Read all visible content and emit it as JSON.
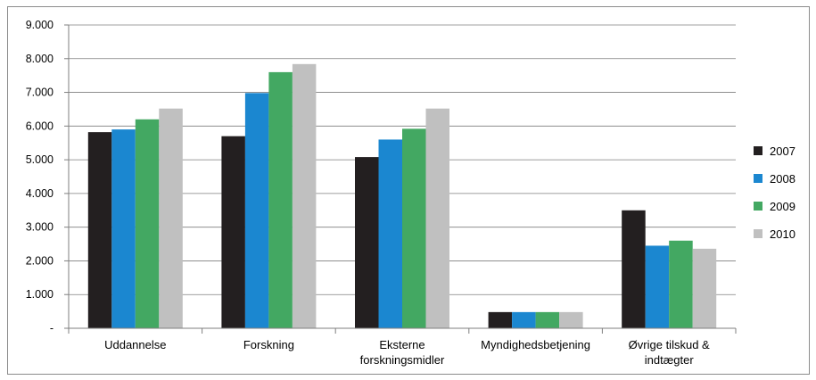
{
  "chart_data": {
    "type": "bar",
    "categories": [
      [
        "Uddannelse"
      ],
      [
        "Forskning"
      ],
      [
        "Eksterne",
        "forskningsmidler"
      ],
      [
        "Myndighedsbetjening"
      ],
      [
        "Øvrige tilskud &",
        "indtægter"
      ]
    ],
    "series": [
      {
        "name": "2007",
        "color": "#231f20",
        "values": [
          5820,
          5700,
          5080,
          480,
          3500
        ]
      },
      {
        "name": "2008",
        "color": "#1b87d0",
        "values": [
          5900,
          6980,
          5600,
          480,
          2450
        ]
      },
      {
        "name": "2009",
        "color": "#43a862",
        "values": [
          6200,
          7600,
          5920,
          480,
          2600
        ]
      },
      {
        "name": "2010",
        "color": "#c0c0c0",
        "values": [
          6520,
          7840,
          6520,
          480,
          2360
        ]
      }
    ],
    "ylim": [
      0,
      9000
    ],
    "yticks": [
      0,
      1000,
      2000,
      3000,
      4000,
      5000,
      6000,
      7000,
      8000,
      9000
    ],
    "ytick_labels": [
      "-",
      "1.000",
      "2.000",
      "3.000",
      "4.000",
      "5.000",
      "6.000",
      "7.000",
      "8.000",
      "9.000"
    ],
    "grid": true,
    "legend_position": "right"
  }
}
